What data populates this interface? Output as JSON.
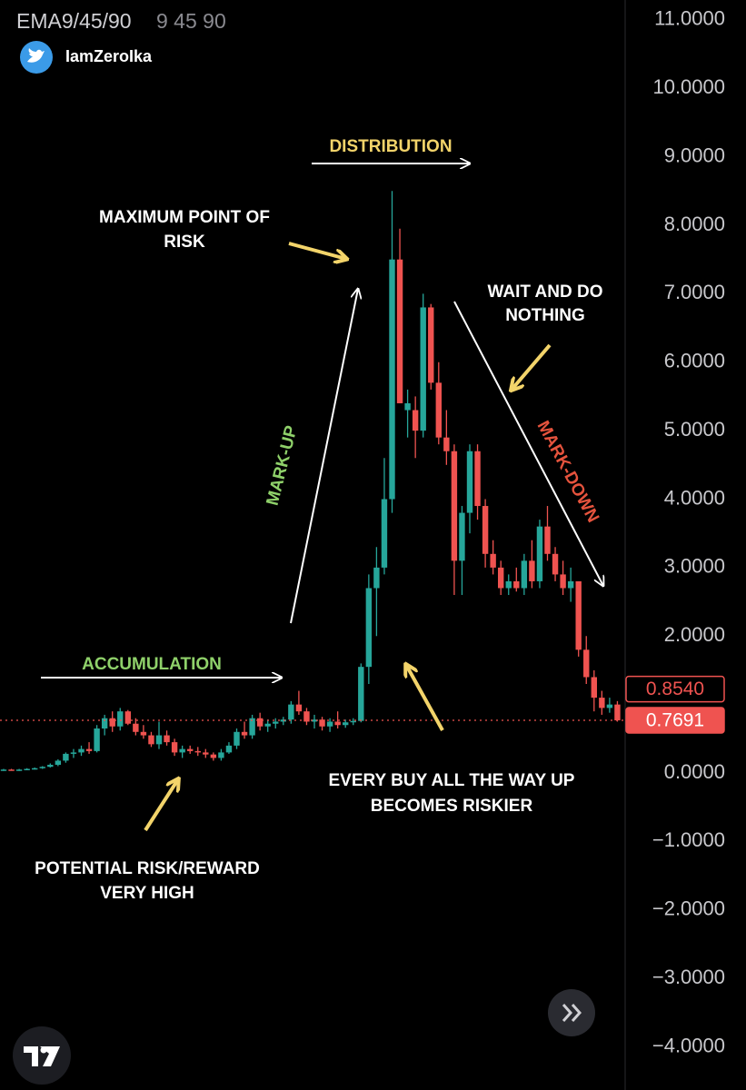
{
  "header": {
    "indicator": "EMA9/45/90",
    "indicator_params": "9 45 90",
    "handle": "IamZeroIka"
  },
  "chart_data": {
    "type": "candlestick",
    "ylim": [
      -4.63,
      11.29
    ],
    "yticks": [
      {
        "value": 11,
        "label": "11.0000"
      },
      {
        "value": 10,
        "label": "10.0000"
      },
      {
        "value": 9,
        "label": "9.0000"
      },
      {
        "value": 8,
        "label": "8.0000"
      },
      {
        "value": 7,
        "label": "7.0000"
      },
      {
        "value": 6,
        "label": "6.0000"
      },
      {
        "value": 5,
        "label": "5.0000"
      },
      {
        "value": 4,
        "label": "4.0000"
      },
      {
        "value": 3,
        "label": "3.0000"
      },
      {
        "value": 2,
        "label": "2.0000"
      },
      {
        "value": 0,
        "label": "0.0000"
      },
      {
        "value": -1,
        "label": "−1.0000"
      },
      {
        "value": -2,
        "label": "−2.0000"
      },
      {
        "value": -3,
        "label": "−3.0000"
      },
      {
        "value": -4,
        "label": "−4.0000"
      }
    ],
    "up_color": "#26a69a",
    "down_color": "#ef5350",
    "price_labels": [
      {
        "value": 0.854,
        "label": "0.8540",
        "style": "outline"
      },
      {
        "value": 0.7691,
        "label": "0.7691",
        "style": "filled"
      }
    ],
    "candles": [
      {
        "open": 0.04,
        "high": 0.06,
        "low": 0.03,
        "close": 0.05
      },
      {
        "open": 0.05,
        "high": 0.06,
        "low": 0.04,
        "close": 0.04
      },
      {
        "open": 0.04,
        "high": 0.06,
        "low": 0.03,
        "close": 0.05
      },
      {
        "open": 0.05,
        "high": 0.07,
        "low": 0.04,
        "close": 0.06
      },
      {
        "open": 0.06,
        "high": 0.08,
        "low": 0.05,
        "close": 0.07
      },
      {
        "open": 0.07,
        "high": 0.1,
        "low": 0.06,
        "close": 0.09
      },
      {
        "open": 0.09,
        "high": 0.14,
        "low": 0.08,
        "close": 0.12
      },
      {
        "open": 0.12,
        "high": 0.2,
        "low": 0.1,
        "close": 0.18
      },
      {
        "open": 0.18,
        "high": 0.3,
        "low": 0.15,
        "close": 0.28
      },
      {
        "open": 0.28,
        "high": 0.35,
        "low": 0.22,
        "close": 0.3
      },
      {
        "open": 0.3,
        "high": 0.4,
        "low": 0.25,
        "close": 0.35
      },
      {
        "open": 0.35,
        "high": 0.45,
        "low": 0.28,
        "close": 0.32
      },
      {
        "open": 0.32,
        "high": 0.7,
        "low": 0.3,
        "close": 0.65
      },
      {
        "open": 0.65,
        "high": 0.85,
        "low": 0.55,
        "close": 0.8
      },
      {
        "open": 0.8,
        "high": 0.9,
        "low": 0.6,
        "close": 0.68
      },
      {
        "open": 0.68,
        "high": 0.95,
        "low": 0.62,
        "close": 0.9
      },
      {
        "open": 0.9,
        "high": 0.92,
        "low": 0.7,
        "close": 0.72
      },
      {
        "open": 0.72,
        "high": 0.8,
        "low": 0.55,
        "close": 0.6
      },
      {
        "open": 0.6,
        "high": 0.7,
        "low": 0.5,
        "close": 0.55
      },
      {
        "open": 0.55,
        "high": 0.6,
        "low": 0.38,
        "close": 0.42
      },
      {
        "open": 0.42,
        "high": 0.75,
        "low": 0.35,
        "close": 0.55
      },
      {
        "open": 0.55,
        "high": 0.62,
        "low": 0.4,
        "close": 0.45
      },
      {
        "open": 0.45,
        "high": 0.5,
        "low": 0.25,
        "close": 0.3
      },
      {
        "open": 0.3,
        "high": 0.4,
        "low": 0.22,
        "close": 0.35
      },
      {
        "open": 0.35,
        "high": 0.4,
        "low": 0.28,
        "close": 0.32
      },
      {
        "open": 0.32,
        "high": 0.38,
        "low": 0.25,
        "close": 0.3
      },
      {
        "open": 0.3,
        "high": 0.35,
        "low": 0.22,
        "close": 0.27
      },
      {
        "open": 0.27,
        "high": 0.3,
        "low": 0.18,
        "close": 0.22
      },
      {
        "open": 0.22,
        "high": 0.35,
        "low": 0.18,
        "close": 0.3
      },
      {
        "open": 0.3,
        "high": 0.45,
        "low": 0.28,
        "close": 0.4
      },
      {
        "open": 0.4,
        "high": 0.65,
        "low": 0.35,
        "close": 0.6
      },
      {
        "open": 0.6,
        "high": 0.75,
        "low": 0.5,
        "close": 0.55
      },
      {
        "open": 0.55,
        "high": 0.85,
        "low": 0.5,
        "close": 0.8
      },
      {
        "open": 0.8,
        "high": 0.88,
        "low": 0.62,
        "close": 0.68
      },
      {
        "open": 0.68,
        "high": 0.78,
        "low": 0.6,
        "close": 0.72
      },
      {
        "open": 0.72,
        "high": 0.8,
        "low": 0.65,
        "close": 0.75
      },
      {
        "open": 0.75,
        "high": 0.82,
        "low": 0.7,
        "close": 0.78
      },
      {
        "open": 0.78,
        "high": 1.05,
        "low": 0.72,
        "close": 1.0
      },
      {
        "open": 1.0,
        "high": 1.2,
        "low": 0.85,
        "close": 0.9
      },
      {
        "open": 0.9,
        "high": 0.95,
        "low": 0.7,
        "close": 0.75
      },
      {
        "open": 0.75,
        "high": 0.85,
        "low": 0.65,
        "close": 0.78
      },
      {
        "open": 0.78,
        "high": 0.82,
        "low": 0.62,
        "close": 0.68
      },
      {
        "open": 0.68,
        "high": 0.8,
        "low": 0.6,
        "close": 0.75
      },
      {
        "open": 0.75,
        "high": 0.9,
        "low": 0.65,
        "close": 0.7
      },
      {
        "open": 0.7,
        "high": 0.78,
        "low": 0.66,
        "close": 0.74
      },
      {
        "open": 0.74,
        "high": 0.8,
        "low": 0.7,
        "close": 0.76
      },
      {
        "open": 0.76,
        "high": 1.6,
        "low": 0.74,
        "close": 1.55
      },
      {
        "open": 1.55,
        "high": 2.9,
        "low": 1.3,
        "close": 2.7
      },
      {
        "open": 2.7,
        "high": 3.3,
        "low": 2.0,
        "close": 3.0
      },
      {
        "open": 3.0,
        "high": 4.6,
        "low": 2.9,
        "close": 4.0
      },
      {
        "open": 4.0,
        "high": 8.5,
        "low": 3.8,
        "close": 7.5
      },
      {
        "open": 7.5,
        "high": 7.95,
        "low": 5.4,
        "close": 5.4
      },
      {
        "open": 5.3,
        "high": 5.6,
        "low": 4.9,
        "close": 5.4
      },
      {
        "open": 5.3,
        "high": 5.5,
        "low": 4.6,
        "close": 5.0
      },
      {
        "open": 5.0,
        "high": 7.0,
        "low": 4.9,
        "close": 6.8
      },
      {
        "open": 6.8,
        "high": 6.85,
        "low": 5.6,
        "close": 5.7
      },
      {
        "open": 5.7,
        "high": 6.0,
        "low": 4.8,
        "close": 4.9
      },
      {
        "open": 4.9,
        "high": 5.3,
        "low": 4.5,
        "close": 4.7
      },
      {
        "open": 4.7,
        "high": 4.8,
        "low": 2.6,
        "close": 3.1
      },
      {
        "open": 3.1,
        "high": 3.9,
        "low": 2.6,
        "close": 3.8
      },
      {
        "open": 3.8,
        "high": 4.8,
        "low": 3.5,
        "close": 4.7
      },
      {
        "open": 4.7,
        "high": 4.8,
        "low": 3.7,
        "close": 3.9
      },
      {
        "open": 3.9,
        "high": 4.0,
        "low": 3.0,
        "close": 3.2
      },
      {
        "open": 3.2,
        "high": 3.4,
        "low": 2.9,
        "close": 3.0
      },
      {
        "open": 3.0,
        "high": 3.1,
        "low": 2.6,
        "close": 2.7
      },
      {
        "open": 2.7,
        "high": 2.9,
        "low": 2.6,
        "close": 2.8
      },
      {
        "open": 2.8,
        "high": 3.0,
        "low": 2.65,
        "close": 2.7
      },
      {
        "open": 2.7,
        "high": 3.2,
        "low": 2.6,
        "close": 3.1
      },
      {
        "open": 3.1,
        "high": 3.4,
        "low": 2.7,
        "close": 2.8
      },
      {
        "open": 2.8,
        "high": 3.7,
        "low": 2.7,
        "close": 3.6
      },
      {
        "open": 3.6,
        "high": 3.9,
        "low": 3.1,
        "close": 3.2
      },
      {
        "open": 3.2,
        "high": 3.3,
        "low": 2.8,
        "close": 2.9
      },
      {
        "open": 2.9,
        "high": 3.1,
        "low": 2.6,
        "close": 2.7
      },
      {
        "open": 2.7,
        "high": 3.0,
        "low": 2.5,
        "close": 2.8
      },
      {
        "open": 2.8,
        "high": 2.8,
        "low": 1.7,
        "close": 1.8
      },
      {
        "open": 1.8,
        "high": 2.0,
        "low": 1.3,
        "close": 1.4
      },
      {
        "open": 1.4,
        "high": 1.5,
        "low": 0.9,
        "close": 1.1
      },
      {
        "open": 1.1,
        "high": 1.2,
        "low": 0.85,
        "close": 0.95
      },
      {
        "open": 0.95,
        "high": 1.1,
        "low": 0.88,
        "close": 1.0
      },
      {
        "open": 1.0,
        "high": 1.05,
        "low": 0.75,
        "close": 0.7691
      }
    ],
    "annotations": [
      {
        "lines": [
          "DISTRIBUTION"
        ],
        "color": "#f3d46a"
      },
      {
        "lines": [
          "MAXIMUM POINT OF",
          "RISK"
        ],
        "color": "#ffffff"
      },
      {
        "lines": [
          "WAIT AND DO",
          "NOTHING"
        ],
        "color": "#ffffff"
      },
      {
        "lines": [
          "MARK-UP"
        ],
        "color": "#8fd16a"
      },
      {
        "lines": [
          "MARK-DOWN"
        ],
        "color": "#e5533d"
      },
      {
        "lines": [
          "ACCUMULATION"
        ],
        "color": "#8fd16a"
      },
      {
        "lines": [
          "EVERY BUY ALL THE WAY UP",
          "BECOMES RISKIER"
        ],
        "color": "#ffffff"
      },
      {
        "lines": [
          "POTENTIAL RISK/REWARD",
          "VERY HIGH"
        ],
        "color": "#ffffff"
      }
    ]
  }
}
